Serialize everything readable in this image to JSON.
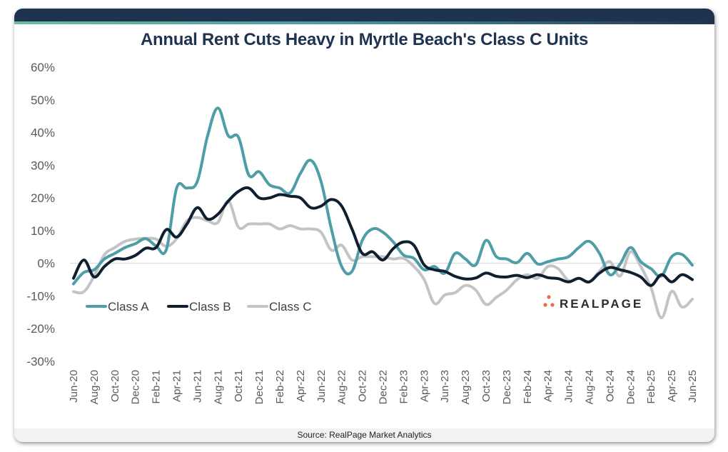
{
  "chart_data": {
    "type": "line",
    "title": "Annual Rent Cuts Heavy in Myrtle Beach's Class C Units",
    "xlabel": "",
    "ylabel": "",
    "ylim": [
      -30,
      60
    ],
    "yticks": [
      60,
      50,
      40,
      30,
      20,
      10,
      0,
      -10,
      -20,
      -30
    ],
    "ytick_labels": [
      "60%",
      "50%",
      "40%",
      "30%",
      "20%",
      "10%",
      "0%",
      "-10%",
      "-20%",
      "-30%"
    ],
    "x": [
      "Jun-20",
      "Jul-20",
      "Aug-20",
      "Sep-20",
      "Oct-20",
      "Nov-20",
      "Dec-20",
      "Jan-21",
      "Feb-21",
      "Mar-21",
      "Apr-21",
      "May-21",
      "Jun-21",
      "Jul-21",
      "Aug-21",
      "Sep-21",
      "Oct-21",
      "Nov-21",
      "Dec-21",
      "Jan-22",
      "Feb-22",
      "Mar-22",
      "Apr-22",
      "May-22",
      "Jun-22",
      "Jul-22",
      "Aug-22",
      "Sep-22",
      "Oct-22",
      "Nov-22",
      "Dec-22",
      "Jan-23",
      "Feb-23",
      "Mar-23",
      "Apr-23",
      "May-23",
      "Jun-23",
      "Jul-23",
      "Aug-23",
      "Sep-23",
      "Oct-23",
      "Nov-23",
      "Dec-23",
      "Jan-24",
      "Feb-24",
      "Mar-24",
      "Apr-24",
      "May-24",
      "Jun-24",
      "Jul-24",
      "Aug-24",
      "Sep-24",
      "Oct-24",
      "Nov-24",
      "Dec-24",
      "Jan-25",
      "Feb-25",
      "Mar-25",
      "Apr-25",
      "May-25",
      "Jun-25"
    ],
    "xtick_labels": [
      "Jun-20",
      "Aug-20",
      "Oct-20",
      "Dec-20",
      "Feb-21",
      "Apr-21",
      "Jun-21",
      "Aug-21",
      "Oct-21",
      "Dec-21",
      "Feb-22",
      "Apr-22",
      "Jun-22",
      "Aug-22",
      "Oct-22",
      "Dec-22",
      "Feb-23",
      "Apr-23",
      "Jun-23",
      "Aug-23",
      "Oct-23",
      "Dec-23",
      "Feb-24",
      "Apr-24",
      "Jun-24",
      "Aug-24",
      "Oct-24",
      "Dec-24",
      "Feb-25",
      "Apr-25",
      "Jun-25"
    ],
    "series": [
      {
        "name": "Class A",
        "color": "#4f9da6",
        "values": [
          -6.3,
          -2.8,
          -2,
          1.3,
          3,
          4.8,
          6,
          7.5,
          5.3,
          4.2,
          23,
          23,
          25,
          39,
          47.5,
          39,
          38.5,
          27,
          28,
          24,
          23,
          21.5,
          27.5,
          31.5,
          25,
          10.5,
          -1,
          -2.5,
          7,
          10.5,
          9.5,
          6.5,
          2.5,
          1.5,
          -2,
          -1,
          -3,
          3,
          1.3,
          -0.5,
          7,
          2,
          1.3,
          0.2,
          3,
          -0.2,
          0.5,
          1.3,
          2,
          4.8,
          6.7,
          3,
          -3.5,
          -0.2,
          4.8,
          0.5,
          -1.7,
          -3.9,
          2,
          2.7,
          -0.6
        ]
      },
      {
        "name": "Class B",
        "color": "#0f1f30",
        "values": [
          -4.6,
          1,
          -4.2,
          -1,
          1.3,
          1.3,
          2.4,
          4.6,
          4.8,
          10.3,
          8,
          12,
          17,
          13.5,
          15,
          19,
          22,
          23,
          20,
          20,
          21,
          20.5,
          20,
          17,
          17.5,
          19.5,
          17.5,
          10.5,
          3,
          3.5,
          1,
          4.5,
          6.5,
          5.5,
          -0.5,
          -2,
          -2.5,
          -4,
          -4.8,
          -4.5,
          -3,
          -4,
          -4.2,
          -3.7,
          -4.4,
          -3.5,
          -4.4,
          -4.7,
          -5.7,
          -4.6,
          -5.7,
          -3,
          -1.3,
          -2,
          -2.8,
          -4.2,
          -6.8,
          -3.5,
          -5.7,
          -3.5,
          -5
        ]
      },
      {
        "name": "Class C",
        "color": "#c3c4c6",
        "values": [
          -8.7,
          -8.7,
          -3.9,
          2.6,
          4.8,
          6.7,
          7.4,
          7.6,
          7.4,
          5.2,
          7.5,
          13,
          14,
          13,
          12.5,
          19,
          11,
          12,
          12,
          12,
          10.5,
          11.5,
          10.5,
          10.5,
          9.5,
          4,
          5.5,
          1,
          2,
          2,
          2,
          1.3,
          1.5,
          -1,
          -5,
          -12.3,
          -9.7,
          -9,
          -6.8,
          -8.2,
          -12.6,
          -10.4,
          -8.2,
          -5,
          -3.5,
          -4.6,
          -1,
          -1.7,
          -5.3,
          -4.6,
          -5.7,
          -2.4,
          0.5,
          -3.9,
          3.5,
          -1,
          -7.5,
          -16.7,
          -8.6,
          -13.4,
          -11
        ]
      }
    ],
    "legend": [
      "Class A",
      "Class B",
      "Class C"
    ],
    "legend_position": "lower-left",
    "grid": false,
    "zero_line": true
  },
  "header": {
    "title": "Annual Rent Cuts Heavy in Myrtle Beach's Class C Units"
  },
  "branding": {
    "logo_text": "REALPAGE",
    "logo_dot_color": "#ef6a4a"
  },
  "footer": {
    "source": "Source: RealPage Market Analytics"
  }
}
